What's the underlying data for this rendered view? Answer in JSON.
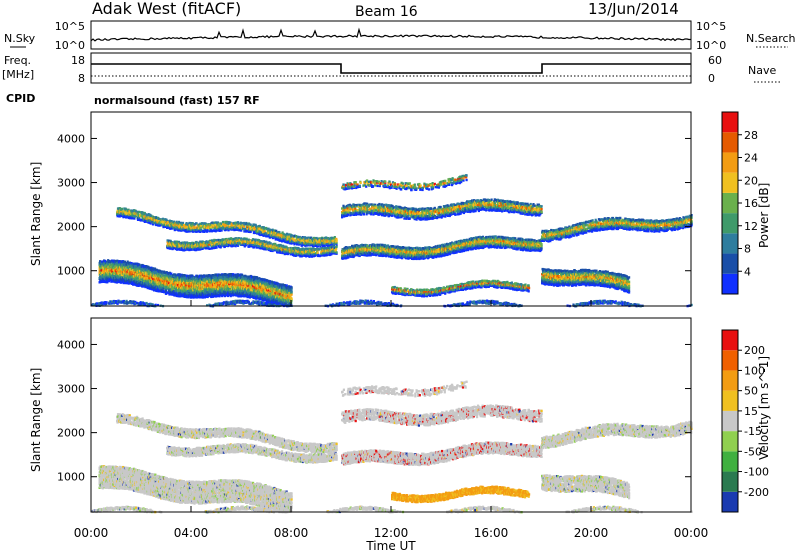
{
  "header": {
    "station": "Adak West (fitACF)",
    "beam": "Beam 16",
    "date": "13/Jun/2014"
  },
  "panels": {
    "nsky_label": "N.Sky",
    "nsearch_label": "N.Search",
    "noise_ticks": [
      "10^5",
      "10^0"
    ],
    "freq_label": "Freq.",
    "freq_unit": "[MHz]",
    "freq_ticks": [
      "18",
      "8"
    ],
    "nave_label": "Nave",
    "nave_ticks": [
      "60",
      "0"
    ],
    "cpid_label": "CPID",
    "cpid_value": "normalsound (fast) 157 RF"
  },
  "chart_data": [
    {
      "type": "heatmap",
      "name": "power",
      "ylabel": "Slant Range [km]",
      "y_ticks": [
        1000,
        2000,
        3000,
        4000
      ],
      "ylim": [
        200,
        4600
      ],
      "colorbar": {
        "label": "Power [dB]",
        "ticks": [
          4,
          8,
          12,
          16,
          20,
          24,
          28
        ],
        "range": [
          0,
          32
        ],
        "colors": [
          "#1030ff",
          "#1a4fa8",
          "#2e7d9e",
          "#3f9a6a",
          "#6ab04c",
          "#f0c020",
          "#f39c12",
          "#e55a00",
          "#e81010"
        ]
      }
    },
    {
      "type": "heatmap",
      "name": "velocity",
      "ylabel": "Slant Range [km]",
      "y_ticks": [
        1000,
        2000,
        3000,
        4000
      ],
      "ylim": [
        200,
        4600
      ],
      "colorbar": {
        "label": "Velocity [m s^-1]",
        "ticks": [
          200,
          100,
          50,
          15,
          -15,
          -50,
          -100,
          -200
        ],
        "colors": [
          "#1a3ab0",
          "#2a7a50",
          "#40b040",
          "#90d050",
          "#c8c8c8",
          "#f0c020",
          "#f39c12",
          "#f06000",
          "#e81010"
        ]
      }
    }
  ],
  "x_axis": {
    "label": "Time UT",
    "ticks": [
      "00:00",
      "04:00",
      "08:00",
      "12:00",
      "16:00",
      "20:00",
      "00:00"
    ]
  }
}
